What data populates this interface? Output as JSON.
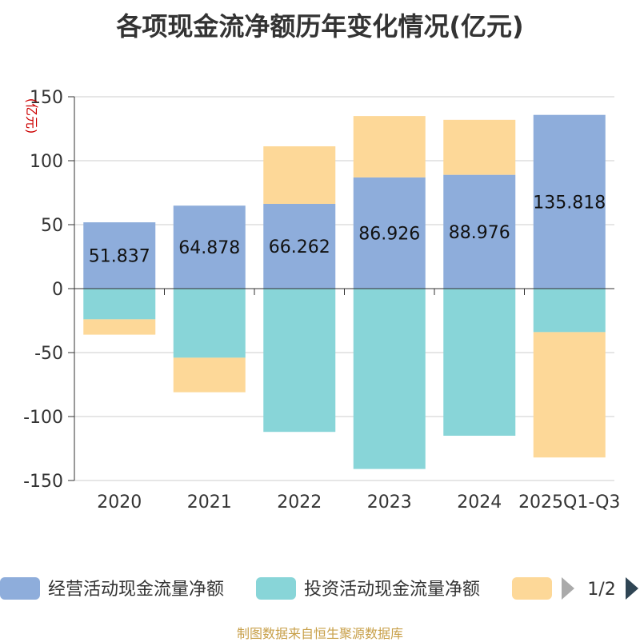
{
  "chart_data": {
    "type": "bar",
    "stacked": true,
    "title": "各项现金流净额历年变化情况(亿元)",
    "unit_label": "(亿元)",
    "categories": [
      "2020",
      "2021",
      "2022",
      "2023",
      "2024",
      "2025Q1-Q3"
    ],
    "ylim": [
      -150,
      150
    ],
    "yticks": [
      150,
      100,
      50,
      0,
      -50,
      -100,
      -150
    ],
    "grid": true,
    "series": [
      {
        "name": "经营活动现金流量净额",
        "color": "#8eaddb",
        "values": [
          51.837,
          64.878,
          66.262,
          86.926,
          88.976,
          135.818
        ],
        "labels": [
          "51.837",
          "64.878",
          "66.262",
          "86.926",
          "88.976",
          "135.818"
        ]
      },
      {
        "name": "投资活动现金流量净额",
        "color": "#88d5d8",
        "values": [
          -24,
          -54,
          -112,
          -141,
          -115,
          -34
        ]
      },
      {
        "color": "#fdd898",
        "values": [
          -12,
          -27,
          45,
          48,
          43,
          -98
        ]
      }
    ],
    "legend": {
      "position": "bottom",
      "page_indicator": "1/2"
    }
  },
  "source": "制图数据来自恒生聚源数据库"
}
